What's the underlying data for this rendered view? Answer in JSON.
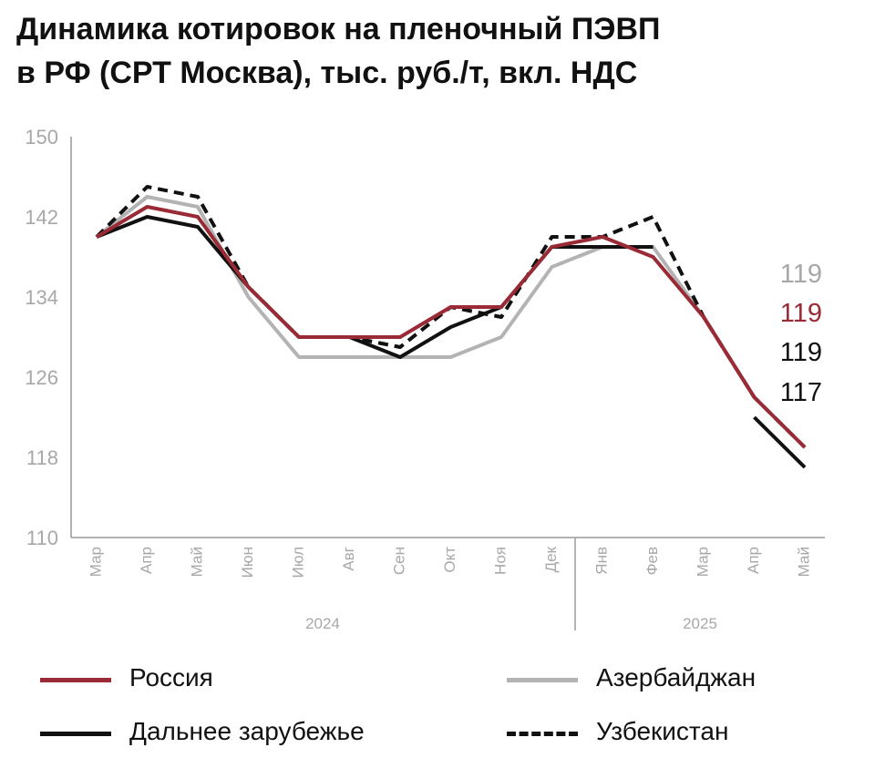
{
  "title_line1": "Динамика котировок на пленочный ПЭВП",
  "title_line2": "в РФ (СРТ Москва), тыс. руб./т, вкл. НДС",
  "colors": {
    "russia": "#9a2a35",
    "azerbaijan": "#b3b3b3",
    "far_abroad": "#111111",
    "uzbekistan": "#111111",
    "axis": "#9a9a9a",
    "tick_text": "#a8a8a8"
  },
  "chart_data": {
    "type": "line",
    "title": "Динамика котировок на пленочный ПЭВП в РФ (СРТ Москва), тыс. руб./т, вкл. НДС",
    "categories": [
      "Мар",
      "Апр",
      "Май",
      "Июн",
      "Июл",
      "Авг",
      "Сен",
      "Окт",
      "Ноя",
      "Дек",
      "Янв",
      "Фев",
      "Мар",
      "Апр",
      "Май"
    ],
    "year_groups": [
      {
        "label": "2024",
        "from": 0,
        "to": 9
      },
      {
        "label": "2025",
        "from": 10,
        "to": 14
      }
    ],
    "yticks": [
      "150",
      "142",
      "134",
      "126",
      "118",
      "110"
    ],
    "ylim": [
      110,
      150
    ],
    "grid": false,
    "series": [
      {
        "name": "Азербайджан",
        "style": "solid",
        "color": "#b3b3b3",
        "values": [
          140,
          144,
          143,
          134,
          128,
          128,
          128,
          128,
          130,
          137,
          139,
          139,
          132,
          124,
          119
        ]
      },
      {
        "name": "Дальнее зарубежье",
        "style": "solid",
        "color": "#111111",
        "values": [
          140,
          142,
          141,
          135,
          130,
          130,
          128,
          131,
          133,
          139,
          139,
          139,
          null,
          122,
          117
        ]
      },
      {
        "name": "Узбекистан",
        "style": "dashed",
        "color": "#111111",
        "values": [
          140,
          145,
          144,
          135,
          130,
          130,
          129,
          133,
          132,
          140,
          140,
          142,
          132,
          124,
          119
        ]
      },
      {
        "name": "Россия",
        "style": "solid",
        "color": "#9a2a35",
        "values": [
          140,
          143,
          142,
          135,
          130,
          130,
          130,
          133,
          133,
          139,
          140,
          138,
          132,
          124,
          119
        ]
      }
    ],
    "end_labels": [
      {
        "text": "119",
        "color": "#a8a8a8"
      },
      {
        "text": "119",
        "color": "#9a2a35"
      },
      {
        "text": "119",
        "color": "#111111"
      },
      {
        "text": "117",
        "color": "#111111"
      }
    ]
  },
  "legend": {
    "russia": "Россия",
    "azerbaijan": "Азербайджан",
    "far_abroad": "Дальнее зарубежье",
    "uzbekistan": "Узбекистан"
  }
}
